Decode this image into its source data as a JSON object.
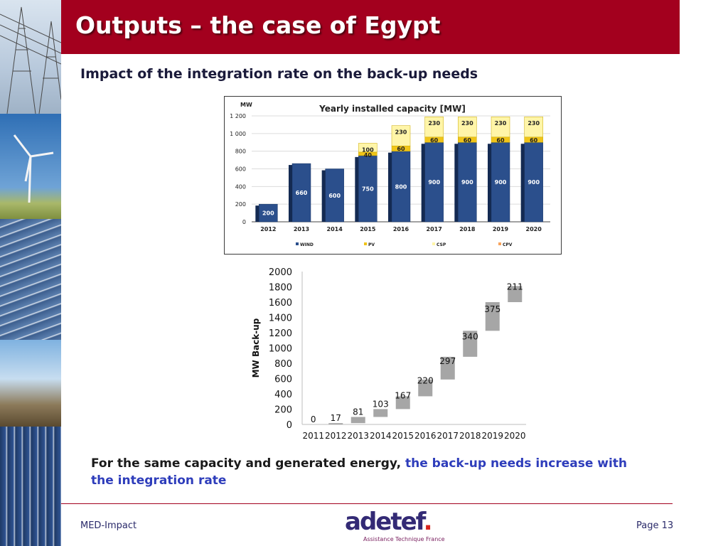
{
  "slide": {
    "title": "Outputs – the case of Egypt",
    "subtitle": "Impact of the integration rate on the back-up needs",
    "conclusion_plain": "For the same capacity and generated energy, ",
    "conclusion_highlight": "the back-up needs increase with the integration rate",
    "footer_left": "MED-Impact",
    "footer_right": "Page 13",
    "logo_text": "adetef",
    "logo_tagline": "Assistance Technique France",
    "colors": {
      "header": "#a3001e",
      "highlight": "#2e3dbb"
    }
  },
  "chart_data": [
    {
      "type": "bar",
      "stacked": true,
      "title": "Yearly installed capacity [MW]",
      "ylabel": "MW",
      "ylim": [
        0,
        1200
      ],
      "yticks": [
        "0",
        "200",
        "400",
        "600",
        "800",
        "1 000",
        "1 200"
      ],
      "categories": [
        "2012",
        "2013",
        "2014",
        "2015",
        "2016",
        "2017",
        "2018",
        "2019",
        "2020"
      ],
      "series": [
        {
          "name": "WIND",
          "color": "#2b4f8c",
          "values": [
            200,
            660,
            600,
            750,
            800,
            900,
            900,
            900,
            900
          ]
        },
        {
          "name": "PV",
          "color": "#f0c419",
          "values": [
            0,
            0,
            0,
            40,
            60,
            60,
            60,
            60,
            60
          ]
        },
        {
          "name": "CSP",
          "color": "#fff5a8",
          "values": [
            0,
            0,
            0,
            100,
            230,
            230,
            230,
            230,
            230
          ]
        },
        {
          "name": "CPV",
          "color": "#f7a35c",
          "values": [
            0,
            0,
            0,
            0,
            0,
            0,
            0,
            0,
            0
          ]
        }
      ],
      "legend_position": "bottom",
      "grid": true
    },
    {
      "type": "bar",
      "subtype": "floating-range",
      "ylabel": "MW Back-up",
      "ylim": [
        0,
        2000
      ],
      "yticks": [
        "0",
        "200",
        "400",
        "600",
        "800",
        "1000",
        "1200",
        "1400",
        "1600",
        "1800",
        "2000"
      ],
      "categories": [
        "2011",
        "2012",
        "2013",
        "2014",
        "2015",
        "2016",
        "2017",
        "2018",
        "2019",
        "2020"
      ],
      "base": [
        0,
        0,
        17,
        98,
        201,
        368,
        588,
        885,
        1225,
        1600
      ],
      "values": [
        0,
        17,
        81,
        103,
        167,
        220,
        297,
        340,
        375,
        211
      ],
      "labels": [
        "0",
        "17",
        "81",
        "103",
        "167",
        "220",
        "297",
        "340",
        "375",
        "211"
      ],
      "color": "#a6a6a6",
      "grid": false
    }
  ]
}
